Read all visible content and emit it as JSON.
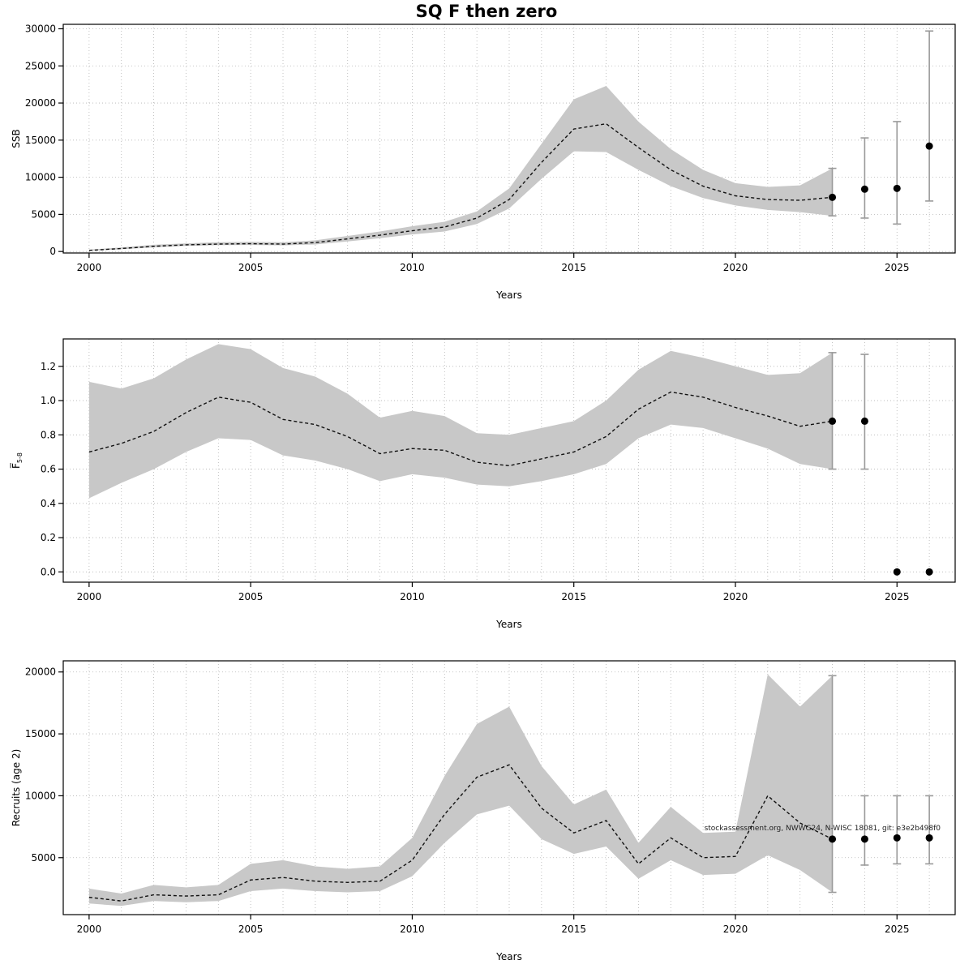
{
  "title": "SQ F then zero",
  "chart_data": [
    {
      "type": "area",
      "ylabel": "SSB",
      "ylabel_sub": "",
      "xlabel": "Years",
      "x": [
        2000,
        2001,
        2002,
        2003,
        2004,
        2005,
        2006,
        2007,
        2008,
        2009,
        2010,
        2011,
        2012,
        2013,
        2014,
        2015,
        2016,
        2017,
        2018,
        2019,
        2020,
        2021,
        2022,
        2023
      ],
      "mean": [
        150,
        400,
        700,
        900,
        1000,
        1050,
        1000,
        1200,
        1700,
        2200,
        2800,
        3300,
        4500,
        7000,
        12000,
        16500,
        17200,
        14000,
        11000,
        8800,
        7500,
        7000,
        6900,
        7300
      ],
      "lower": [
        100,
        300,
        550,
        750,
        850,
        880,
        820,
        950,
        1350,
        1800,
        2300,
        2700,
        3700,
        5800,
        9800,
        13500,
        13400,
        11000,
        8800,
        7200,
        6200,
        5600,
        5300,
        4800
      ],
      "upper": [
        250,
        550,
        900,
        1100,
        1250,
        1300,
        1250,
        1500,
        2100,
        2700,
        3400,
        4000,
        5400,
        8500,
        14500,
        20500,
        22300,
        17500,
        13800,
        11000,
        9200,
        8700,
        8900,
        11200
      ],
      "forecast": [
        {
          "x": 2023,
          "y": 7300,
          "lo": 4800,
          "hi": 11200
        },
        {
          "x": 2024,
          "y": 8400,
          "lo": 4500,
          "hi": 15300
        },
        {
          "x": 2025,
          "y": 8500,
          "lo": 3700,
          "hi": 17500
        },
        {
          "x": 2026,
          "y": 14200,
          "lo": 6800,
          "hi": 29700
        }
      ],
      "x_ticks": [
        2000,
        2005,
        2010,
        2015,
        2020,
        2025
      ],
      "y_ticks": [
        0,
        5000,
        10000,
        15000,
        20000,
        25000,
        30000
      ],
      "y_tick_labels": [
        "0",
        "5000",
        "10000",
        "15000",
        "20000",
        "25000",
        "30000"
      ],
      "xlim": [
        1999.2,
        2026.8
      ],
      "ylim": [
        -200,
        30600
      ],
      "grid": true,
      "watermark": ""
    },
    {
      "type": "area",
      "ylabel": "F̅",
      "ylabel_sub": "5-8",
      "xlabel": "Years",
      "x": [
        2000,
        2001,
        2002,
        2003,
        2004,
        2005,
        2006,
        2007,
        2008,
        2009,
        2010,
        2011,
        2012,
        2013,
        2014,
        2015,
        2016,
        2017,
        2018,
        2019,
        2020,
        2021,
        2022,
        2023
      ],
      "mean": [
        0.7,
        0.75,
        0.82,
        0.93,
        1.02,
        0.99,
        0.89,
        0.86,
        0.79,
        0.69,
        0.72,
        0.71,
        0.64,
        0.62,
        0.66,
        0.7,
        0.79,
        0.95,
        1.05,
        1.02,
        0.96,
        0.91,
        0.85,
        0.88
      ],
      "lower": [
        0.43,
        0.52,
        0.6,
        0.7,
        0.78,
        0.77,
        0.68,
        0.65,
        0.6,
        0.53,
        0.57,
        0.55,
        0.51,
        0.5,
        0.53,
        0.57,
        0.63,
        0.78,
        0.86,
        0.84,
        0.78,
        0.72,
        0.63,
        0.6
      ],
      "upper": [
        1.11,
        1.07,
        1.13,
        1.24,
        1.33,
        1.3,
        1.19,
        1.14,
        1.04,
        0.9,
        0.94,
        0.91,
        0.81,
        0.8,
        0.84,
        0.88,
        1.0,
        1.18,
        1.29,
        1.25,
        1.2,
        1.15,
        1.16,
        1.28
      ],
      "forecast": [
        {
          "x": 2023,
          "y": 0.88,
          "lo": 0.6,
          "hi": 1.28
        },
        {
          "x": 2024,
          "y": 0.88,
          "lo": 0.6,
          "hi": 1.27
        },
        {
          "x": 2025,
          "y": 0.0,
          "lo": 0.0,
          "hi": 0.0
        },
        {
          "x": 2026,
          "y": 0.0,
          "lo": 0.0,
          "hi": 0.0
        }
      ],
      "x_ticks": [
        2000,
        2005,
        2010,
        2015,
        2020,
        2025
      ],
      "y_ticks": [
        0,
        0.2,
        0.4,
        0.6,
        0.8,
        1.0,
        1.2
      ],
      "y_tick_labels": [
        "0.0",
        "0.2",
        "0.4",
        "0.6",
        "0.8",
        "1.0",
        "1.2"
      ],
      "xlim": [
        1999.2,
        2026.8
      ],
      "ylim": [
        -0.06,
        1.36
      ],
      "grid": true,
      "watermark": ""
    },
    {
      "type": "area",
      "ylabel": "Recruits (age 2)",
      "ylabel_sub": "",
      "xlabel": "Years",
      "x": [
        2000,
        2001,
        2002,
        2003,
        2004,
        2005,
        2006,
        2007,
        2008,
        2009,
        2010,
        2011,
        2012,
        2013,
        2014,
        2015,
        2016,
        2017,
        2018,
        2019,
        2020,
        2021,
        2022,
        2023
      ],
      "mean": [
        1800,
        1500,
        2000,
        1900,
        2000,
        3200,
        3400,
        3100,
        3000,
        3100,
        4800,
        8500,
        11500,
        12500,
        9000,
        7000,
        8000,
        4500,
        6600,
        5000,
        5100,
        10000,
        7800,
        6500
      ],
      "lower": [
        1300,
        1100,
        1500,
        1400,
        1500,
        2300,
        2500,
        2300,
        2200,
        2300,
        3500,
        6200,
        8500,
        9200,
        6500,
        5300,
        5900,
        3300,
        4800,
        3600,
        3700,
        5200,
        4000,
        2200
      ],
      "upper": [
        2500,
        2100,
        2800,
        2600,
        2800,
        4500,
        4800,
        4300,
        4100,
        4300,
        6600,
        11600,
        15800,
        17200,
        12400,
        9300,
        10500,
        6200,
        9100,
        7000,
        7100,
        19800,
        17200,
        19700
      ],
      "forecast": [
        {
          "x": 2023,
          "y": 6500,
          "lo": 2200,
          "hi": 19700
        },
        {
          "x": 2024,
          "y": 6500,
          "lo": 4400,
          "hi": 10000
        },
        {
          "x": 2025,
          "y": 6600,
          "lo": 4500,
          "hi": 10000
        },
        {
          "x": 2026,
          "y": 6600,
          "lo": 4500,
          "hi": 10000
        }
      ],
      "x_ticks": [
        2000,
        2005,
        2010,
        2015,
        2020,
        2025
      ],
      "y_ticks": [
        5000,
        10000,
        15000,
        20000
      ],
      "y_tick_labels": [
        "5000",
        "10000",
        "15000",
        "20000"
      ],
      "xlim": [
        1999.2,
        2026.8
      ],
      "ylim": [
        400,
        20900
      ],
      "grid": true,
      "watermark": "stockassessment.org, NWWG24, N-WISC 18081, git: e3e2b498f0"
    }
  ]
}
